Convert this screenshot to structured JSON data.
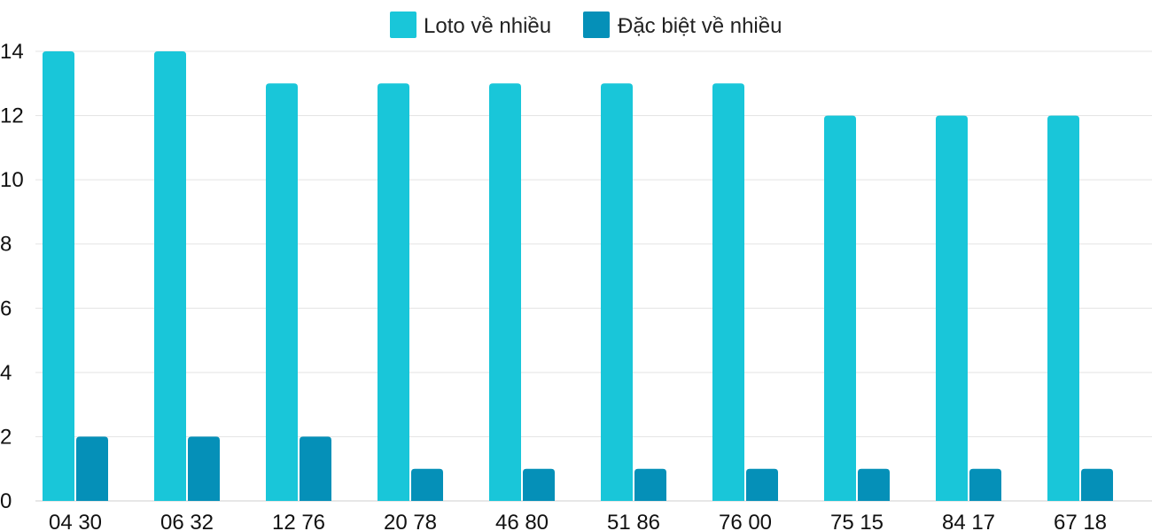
{
  "chart_data": {
    "type": "bar",
    "title": "",
    "xlabel": "",
    "ylabel": "",
    "categories": [
      "04 30",
      "06 32",
      "12 76",
      "20 78",
      "46 80",
      "51 86",
      "76 00",
      "75 15",
      "84 17",
      "67 18"
    ],
    "series": [
      {
        "name": "Loto về nhiều",
        "color": "#19c6d9",
        "values": [
          14,
          14,
          13,
          13,
          13,
          13,
          13,
          12,
          12,
          12
        ]
      },
      {
        "name": "Đặc biệt về nhiều",
        "color": "#0590b8",
        "values": [
          2,
          2,
          2,
          1,
          1,
          1,
          1,
          1,
          1,
          1
        ]
      }
    ],
    "ylim": [
      0,
      14
    ],
    "yticks": [
      "0",
      "2",
      "4",
      "6",
      "8",
      "10",
      "12",
      "14"
    ],
    "grid": true,
    "legend_position": "top-center"
  }
}
